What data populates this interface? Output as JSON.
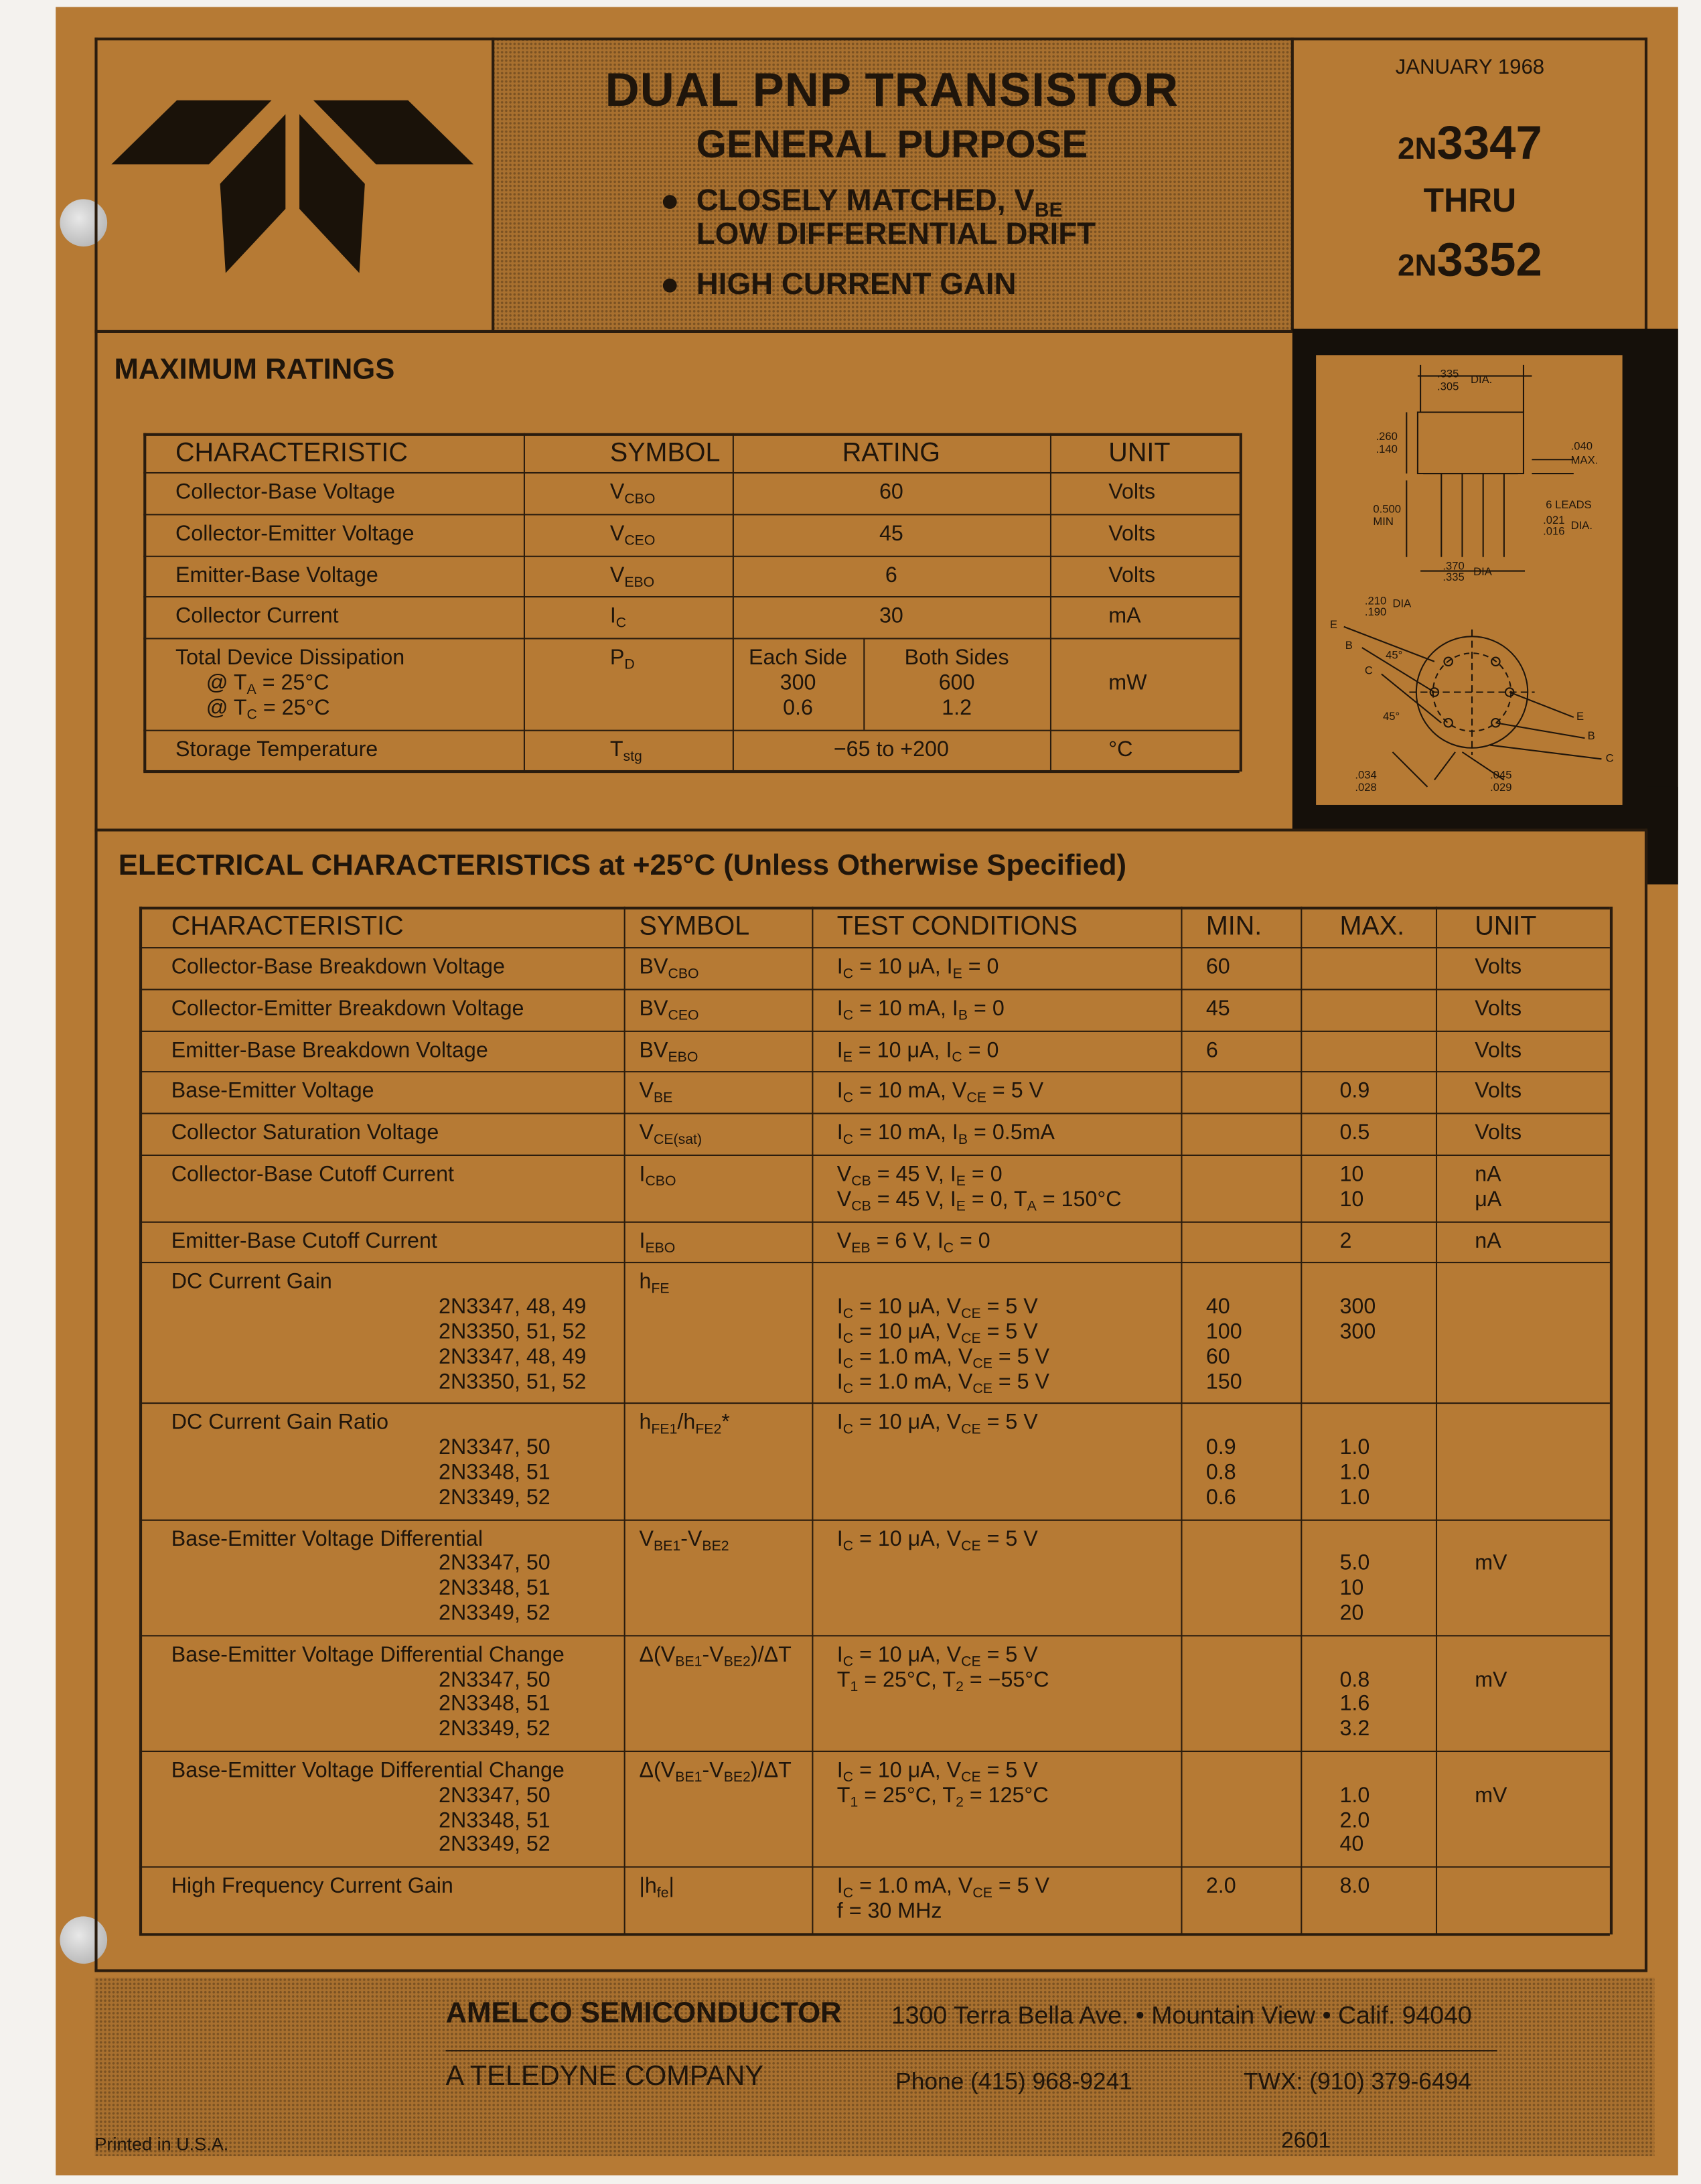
{
  "header": {
    "title": "DUAL PNP TRANSISTOR",
    "subtitle": "GENERAL PURPOSE",
    "features": [
      [
        [
          "CLOSELY MATCHED, V",
          "BE"
        ],
        "LOW DIFFERENTIAL DRIFT"
      ],
      [
        "HIGH CURRENT GAIN"
      ]
    ],
    "date": "JANUARY 1968",
    "part_from": {
      "prefix": "2N",
      "number": "3347"
    },
    "thru": "THRU",
    "part_to": {
      "prefix": "2N",
      "number": "3352"
    }
  },
  "diagram": {
    "labels": [
      ".335",
      ".305",
      "DIA.",
      ".260",
      ".140",
      ".040",
      "MAX.",
      "0.500",
      "MIN",
      "6 LEADS",
      ".021",
      ".016",
      "DIA.",
      ".370",
      ".335",
      "DIA",
      ".210",
      ".190",
      "DIA",
      "E",
      "B",
      "C",
      "45°",
      "45°",
      "E",
      "B",
      "C",
      ".034",
      ".028",
      ".045",
      ".029"
    ]
  },
  "max_ratings": {
    "title": "MAXIMUM RATINGS",
    "columns": [
      "CHARACTERISTIC",
      "SYMBOL",
      "RATING",
      "UNIT"
    ],
    "rows": [
      [
        [
          "Collector-Base Voltage"
        ],
        [
          [
            "V",
            "CBO"
          ]
        ],
        [
          "60"
        ],
        [
          "Volts"
        ]
      ],
      [
        [
          "Collector-Emitter Voltage"
        ],
        [
          [
            "V",
            "CEO"
          ]
        ],
        [
          "45"
        ],
        [
          "Volts"
        ]
      ],
      [
        [
          "Emitter-Base Voltage"
        ],
        [
          [
            "V",
            "EBO"
          ]
        ],
        [
          "6"
        ],
        [
          "Volts"
        ]
      ],
      [
        [
          "Collector Current"
        ],
        [
          [
            "I",
            "C"
          ]
        ],
        [
          "30"
        ],
        [
          "mA"
        ]
      ],
      [
        [
          "Total Device Dissipation",
          [
            "@ T",
            "A",
            " = 25°C"
          ],
          [
            "@ T",
            "C",
            " = 25°C"
          ]
        ],
        [
          [
            "P",
            "D"
          ]
        ],
        [
          "Each Side",
          "300",
          "0.6"
        ],
        [
          "Both Sides",
          "600",
          "1.2"
        ],
        [
          null,
          "mW"
        ]
      ],
      [
        [
          "Storage Temperature"
        ],
        [
          [
            "T",
            "stg"
          ]
        ],
        [
          "−65 to +200"
        ],
        [
          "°C"
        ]
      ]
    ]
  },
  "electrical": {
    "title": "ELECTRICAL CHARACTERISTICS at +25°C (Unless Otherwise Specified)",
    "columns": [
      "CHARACTERISTIC",
      "SYMBOL",
      "TEST CONDITIONS",
      "MIN.",
      "MAX.",
      "UNIT"
    ],
    "rows": [
      [
        [
          "Collector-Base Breakdown Voltage"
        ],
        [
          [
            "BV",
            "CBO"
          ]
        ],
        [
          [
            "I",
            "C",
            " = 10 μA, I",
            "E",
            " = 0"
          ]
        ],
        [
          "60"
        ],
        null,
        [
          "Volts"
        ]
      ],
      [
        [
          "Collector-Emitter Breakdown Voltage"
        ],
        [
          [
            "BV",
            "CEO"
          ]
        ],
        [
          [
            "I",
            "C",
            " = 10 mA, I",
            "B",
            " = 0"
          ]
        ],
        [
          "45"
        ],
        null,
        [
          "Volts"
        ]
      ],
      [
        [
          "Emitter-Base Breakdown Voltage"
        ],
        [
          [
            "BV",
            "EBO"
          ]
        ],
        [
          [
            "I",
            "E",
            " = 10 μA, I",
            "C",
            " = 0"
          ]
        ],
        [
          "6"
        ],
        null,
        [
          "Volts"
        ]
      ],
      [
        [
          "Base-Emitter Voltage"
        ],
        [
          [
            "V",
            "BE"
          ]
        ],
        [
          [
            "I",
            "C",
            " = 10 mA, V",
            "CE",
            " = 5 V"
          ]
        ],
        null,
        [
          "0.9"
        ],
        [
          "Volts"
        ]
      ],
      [
        [
          "Collector Saturation Voltage"
        ],
        [
          [
            "V",
            "CE(sat)"
          ]
        ],
        [
          [
            "I",
            "C",
            " = 10 mA, I",
            "B",
            " = 0.5mA"
          ]
        ],
        null,
        [
          "0.5"
        ],
        [
          "Volts"
        ]
      ],
      [
        [
          "Collector-Base Cutoff Current"
        ],
        [
          [
            "I",
            "CBO"
          ]
        ],
        [
          [
            "V",
            "CB",
            " = 45 V, I",
            "E",
            " = 0"
          ],
          [
            "V",
            "CB",
            " = 45 V, I",
            "E",
            " = 0, T",
            "A",
            " = 150°C"
          ]
        ],
        null,
        [
          "10",
          "10"
        ],
        [
          "nA",
          "μA"
        ]
      ],
      [
        [
          "Emitter-Base Cutoff Current"
        ],
        [
          [
            "I",
            "EBO"
          ]
        ],
        [
          [
            "V",
            "EB",
            " = 6 V, I",
            "C",
            " = 0"
          ]
        ],
        null,
        [
          "2"
        ],
        [
          "nA"
        ]
      ],
      [
        [
          "DC Current Gain",
          "2N3347, 48, 49",
          "2N3350, 51, 52",
          "2N3347, 48, 49",
          "2N3350, 51, 52"
        ],
        [
          [
            "h",
            "FE"
          ]
        ],
        [
          null,
          [
            "I",
            "C",
            " = 10 μA, V",
            "CE",
            " = 5 V"
          ],
          [
            "I",
            "C",
            " = 10 μA, V",
            "CE",
            " = 5 V"
          ],
          [
            "I",
            "C",
            " = 1.0 mA, V",
            "CE",
            " = 5 V"
          ],
          [
            "I",
            "C",
            " = 1.0 mA, V",
            "CE",
            " = 5 V"
          ]
        ],
        [
          null,
          "40",
          "100",
          "60",
          "150"
        ],
        [
          null,
          "300",
          "300"
        ],
        null
      ],
      [
        [
          "DC Current Gain Ratio",
          "2N3347, 50",
          "2N3348, 51",
          "2N3349, 52"
        ],
        [
          [
            "h",
            "FE1",
            "/h",
            "FE2",
            "*"
          ]
        ],
        [
          [
            "I",
            "C",
            " = 10 μA, V",
            "CE",
            " = 5 V"
          ]
        ],
        [
          null,
          "0.9",
          "0.8",
          "0.6"
        ],
        [
          null,
          "1.0",
          "1.0",
          "1.0"
        ],
        null
      ],
      [
        [
          "Base-Emitter Voltage Differential",
          "2N3347, 50",
          "2N3348, 51",
          "2N3349, 52"
        ],
        [
          [
            "V",
            "BE1",
            "-V",
            "BE2"
          ]
        ],
        [
          [
            "I",
            "C",
            " = 10 μA, V",
            "CE",
            " = 5 V"
          ]
        ],
        null,
        [
          null,
          "5.0",
          "10",
          "20"
        ],
        [
          null,
          "mV"
        ]
      ],
      [
        [
          "Base-Emitter Voltage Differential Change",
          "2N3347, 50",
          "2N3348, 51",
          "2N3349, 52"
        ],
        [
          [
            "Δ(V",
            "BE1",
            "-V",
            "BE2",
            ")/ΔT"
          ]
        ],
        [
          [
            "I",
            "C",
            " = 10 μA, V",
            "CE",
            " = 5 V"
          ],
          [
            "T",
            "1",
            " = 25°C, T",
            "2",
            " = −55°C"
          ]
        ],
        null,
        [
          null,
          "0.8",
          "1.6",
          "3.2"
        ],
        [
          null,
          "mV"
        ]
      ],
      [
        [
          "Base-Emitter Voltage Differential Change",
          "2N3347, 50",
          "2N3348, 51",
          "2N3349, 52"
        ],
        [
          [
            "Δ(V",
            "BE1",
            "-V",
            "BE2",
            ")/ΔT"
          ]
        ],
        [
          [
            "I",
            "C",
            " = 10 μA, V",
            "CE",
            " = 5 V"
          ],
          [
            "T",
            "1",
            " = 25°C, T",
            "2",
            " = 125°C"
          ]
        ],
        null,
        [
          null,
          "1.0",
          "2.0",
          "40"
        ],
        [
          null,
          "mV"
        ]
      ],
      [
        [
          "High Frequency Current Gain"
        ],
        [
          [
            "|h",
            "fe",
            "|"
          ]
        ],
        [
          [
            "I",
            "C",
            " = 1.0 mA, V",
            "CE",
            " = 5 V"
          ],
          "f = 30 MHz"
        ],
        [
          "2.0"
        ],
        [
          "8.0"
        ],
        null
      ]
    ]
  },
  "footer": {
    "company": "AMELCO SEMICONDUCTOR",
    "address": "1300 Terra Bella Ave. • Mountain View • Calif. 94040",
    "parent": "A TELEDYNE COMPANY",
    "phone": "Phone (415) 968-9241",
    "twx": "TWX: (910) 379-6494"
  },
  "printed": "Printed in U.S.A.",
  "doc_number": "2601"
}
